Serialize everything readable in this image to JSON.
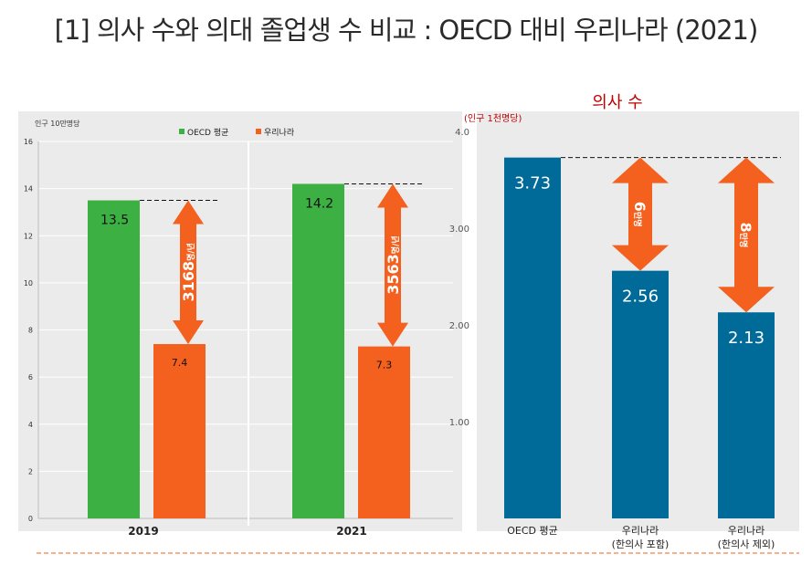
{
  "title": "[1] 의사 수와 의대 졸업생 수 비교 : OECD 대비 우리나라 (2021)",
  "colors": {
    "oecd": "#3cb043",
    "korea": "#f4601e",
    "blue": "#006b99",
    "arrow": "#f4601e",
    "panel": "#ebebeb"
  },
  "chart_data": [
    {
      "type": "bar",
      "unit_label": "인구 10만명당",
      "categories": [
        "2019",
        "2021"
      ],
      "series": [
        {
          "name": "OECD 평균",
          "values": [
            13.5,
            14.2
          ]
        },
        {
          "name": "우리나라",
          "values": [
            7.4,
            7.3
          ]
        }
      ],
      "data_labels": {
        "oecd": [
          "13.5",
          "14.2"
        ],
        "korea": [
          "7.4",
          "7.3"
        ]
      },
      "ylim": [
        0,
        16
      ],
      "yticks": [
        "0",
        "2",
        "4",
        "6",
        "8",
        "10",
        "12",
        "14",
        "16"
      ],
      "annotations": [
        {
          "category": "2019",
          "text": "3168",
          "unit": "명/년"
        },
        {
          "category": "2021",
          "text": "3563",
          "unit": "명/년"
        }
      ],
      "legend": "top"
    },
    {
      "type": "bar",
      "title": "의사 수",
      "unit_label": "(인구 1천명당)",
      "categories": [
        [
          "OECD 평균"
        ],
        [
          "우리나라",
          "(한의사 포함)"
        ],
        [
          "우리나라",
          "(한의사 제외)"
        ]
      ],
      "values": [
        3.73,
        2.56,
        2.13
      ],
      "labels": [
        "3.73",
        "2.56",
        "2.13"
      ],
      "ylim": [
        0,
        4.0
      ],
      "yticks": [
        "1.00",
        "2.00",
        "3.00",
        "4.0"
      ],
      "annotations": [
        {
          "category": "우리나라 (한의사 포함)",
          "text": "6",
          "unit": "만명"
        },
        {
          "category": "우리나라 (한의사 제외)",
          "text": "8",
          "unit": "만명"
        }
      ]
    }
  ]
}
